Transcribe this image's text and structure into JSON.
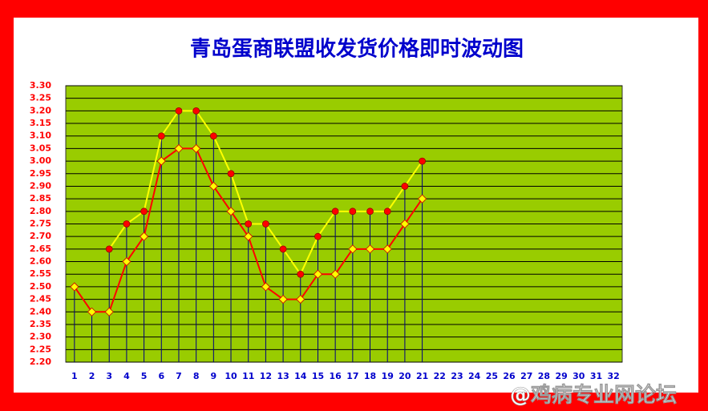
{
  "chart_data": {
    "type": "line",
    "title": "青岛蛋商联盟收发货价格即时波动图",
    "watermark": "@鸡病专业网论坛",
    "categories": [
      "1",
      "2",
      "3",
      "4",
      "5",
      "6",
      "7",
      "8",
      "9",
      "10",
      "11",
      "12",
      "13",
      "14",
      "15",
      "16",
      "17",
      "18",
      "19",
      "20",
      "21",
      "22",
      "23",
      "24",
      "25",
      "26",
      "27",
      "28",
      "29",
      "30",
      "31",
      "32"
    ],
    "series": [
      {
        "color": "#ff0000",
        "marker": "diamond",
        "marker_color": "#ffff00",
        "values": [
          2.5,
          2.4,
          2.4,
          2.6,
          2.7,
          3.0,
          3.05,
          3.05,
          2.9,
          2.8,
          2.7,
          2.5,
          2.45,
          2.45,
          2.55,
          2.55,
          2.65,
          2.65,
          2.65,
          2.75,
          2.85,
          null,
          null,
          null,
          null,
          null,
          null,
          null,
          null,
          null,
          null,
          null
        ]
      },
      {
        "color": "#ffff00",
        "marker": "circle",
        "marker_color": "#ff0000",
        "values": [
          null,
          null,
          2.65,
          2.75,
          2.8,
          3.1,
          3.2,
          3.2,
          3.1,
          2.95,
          2.75,
          2.75,
          2.65,
          2.55,
          2.7,
          2.8,
          2.8,
          2.8,
          2.8,
          2.9,
          3.0,
          null,
          null,
          null,
          null,
          null,
          null,
          null,
          null,
          null,
          null,
          null
        ]
      }
    ],
    "ylim": [
      2.2,
      3.3
    ],
    "yticks": [
      {
        "value": 2.2,
        "label": "2.20"
      },
      {
        "value": 2.25,
        "label": "2.25"
      },
      {
        "value": 2.3,
        "label": "2.30"
      },
      {
        "value": 2.35,
        "label": "2.35"
      },
      {
        "value": 2.4,
        "label": "2.40"
      },
      {
        "value": 2.45,
        "label": "2.45"
      },
      {
        "value": 2.5,
        "label": "2.50"
      },
      {
        "value": 2.55,
        "label": "2.55"
      },
      {
        "value": 2.6,
        "label": "2.60"
      },
      {
        "value": 2.65,
        "label": "2.65"
      },
      {
        "value": 2.7,
        "label": "2.70"
      },
      {
        "value": 2.75,
        "label": "2.75"
      },
      {
        "value": 2.8,
        "label": "2.80"
      },
      {
        "value": 2.85,
        "label": "2.85"
      },
      {
        "value": 2.9,
        "label": "2.90"
      },
      {
        "value": 2.95,
        "label": "2.95"
      },
      {
        "value": 3.0,
        "label": "3.00"
      },
      {
        "value": 3.05,
        "label": "3.05"
      },
      {
        "value": 3.1,
        "label": "3.10"
      },
      {
        "value": 3.15,
        "label": "3.15"
      },
      {
        "value": 3.2,
        "label": "3.20"
      },
      {
        "value": 3.25,
        "label": "3.25"
      },
      {
        "value": 3.3,
        "label": "3.30"
      }
    ],
    "grid": true,
    "plot_color": "#99cc00",
    "drop_lines": true
  }
}
